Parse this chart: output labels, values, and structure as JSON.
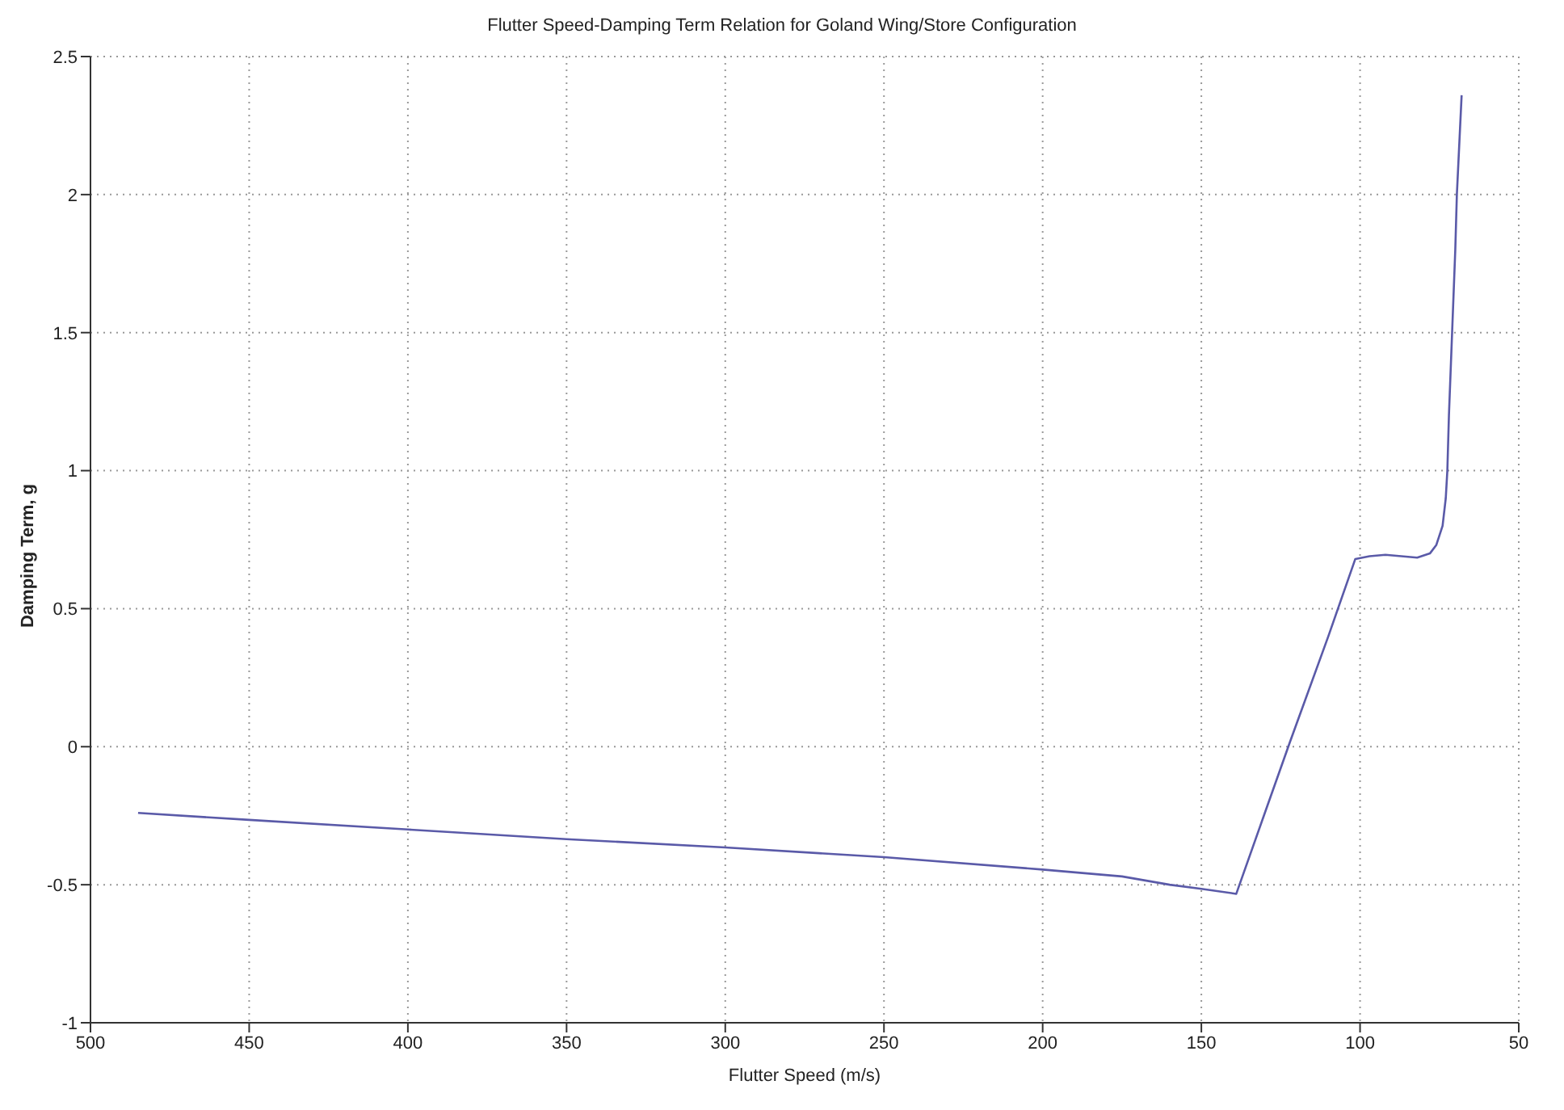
{
  "chart_data": {
    "type": "line",
    "title": "Flutter Speed-Damping Term Relation for Goland Wing/Store Configuration",
    "xlabel": "Flutter Speed (m/s)",
    "ylabel": "Damping Term, g",
    "x": [
      485,
      450,
      400,
      350,
      300,
      250,
      200,
      175,
      160,
      150,
      139,
      130,
      122,
      110,
      101.5,
      97,
      92,
      87,
      82,
      78,
      76,
      74,
      73,
      72.5,
      72,
      71,
      70,
      69.5,
      68
    ],
    "series": [
      {
        "color": "#5a5aa8",
        "values": [
          -0.24,
          -0.265,
          -0.3,
          -0.335,
          -0.365,
          -0.4,
          -0.445,
          -0.47,
          -0.5,
          -0.515,
          -0.533,
          -0.24,
          0.02,
          0.4,
          0.68,
          0.69,
          0.695,
          0.69,
          0.685,
          0.7,
          0.73,
          0.8,
          0.9,
          1.0,
          1.2,
          1.5,
          1.8,
          2.0,
          2.36
        ]
      }
    ],
    "xlim": [
      500,
      50
    ],
    "xticks": [
      500,
      450,
      400,
      350,
      300,
      250,
      200,
      150,
      100,
      50
    ],
    "ylim": [
      -1,
      2.5
    ],
    "yticks": [
      -1,
      -0.5,
      0,
      0.5,
      1,
      1.5,
      2,
      2.5
    ],
    "grid": true,
    "legend": false,
    "marker": "none",
    "line_style": "solid"
  }
}
